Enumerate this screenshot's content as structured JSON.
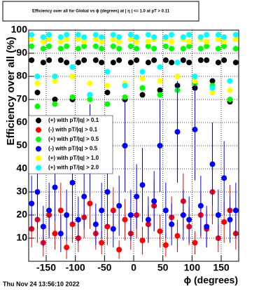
{
  "chart_data": {
    "type": "scatter",
    "title": "Efficiency over all for Global vs ϕ (degrees) at | η | <= 1.0 at pT > 0.11",
    "x_label": "ϕ (degrees)",
    "y_label": "Efficiency over all (%)",
    "timestamp": "Thu Nov 24 13:56:10 2022",
    "xlim": [
      -180,
      180
    ],
    "ylim": [
      0,
      100
    ],
    "xticks": [
      -150,
      -100,
      -50,
      0,
      50,
      100,
      150
    ],
    "yticks": [
      10,
      20,
      30,
      40,
      50,
      60,
      70,
      80,
      90,
      100
    ],
    "grid": true,
    "legend": "left",
    "x": [
      -175,
      -165,
      -155,
      -145,
      -135,
      -125,
      -115,
      -105,
      -95,
      -85,
      -75,
      -65,
      -55,
      -45,
      -35,
      -25,
      -15,
      -5,
      5,
      15,
      25,
      35,
      45,
      55,
      65,
      75,
      85,
      95,
      105,
      115,
      125,
      135,
      145,
      155,
      165,
      175
    ],
    "series": [
      {
        "name": "(+) with pT/|q| > 0.1",
        "color": "#000000",
        "values": [
          87,
          73,
          86,
          87,
          70,
          87,
          86,
          70,
          86,
          87,
          72,
          87,
          86,
          73,
          86,
          87,
          70,
          86,
          87,
          72,
          86,
          87,
          74,
          87,
          86,
          76,
          87,
          86,
          75,
          87,
          87,
          78,
          86,
          87,
          69,
          86
        ]
      },
      {
        "name": "(-) with pT/|q| > 0.1",
        "color": "#ff0000",
        "values": [
          14,
          18,
          8,
          20,
          12,
          22,
          6,
          16,
          10,
          19,
          25,
          12,
          8,
          15,
          22,
          5,
          18,
          12,
          20,
          9,
          16,
          24,
          13,
          7,
          19,
          11,
          26,
          15,
          8,
          20,
          14,
          30,
          10,
          17,
          22,
          12
        ],
        "errors": [
          8,
          10,
          6,
          9,
          7,
          12,
          5,
          8,
          6,
          9,
          11,
          7,
          5,
          8,
          10,
          4,
          9,
          7,
          10,
          6,
          8,
          11,
          7,
          5,
          9,
          7,
          12,
          8,
          5,
          10,
          8,
          14,
          6,
          9,
          11,
          7
        ]
      },
      {
        "name": "(+) with pT/|q| > 0.5",
        "color": "#00ff00",
        "values": [
          93,
          67,
          92,
          93,
          68,
          92,
          93,
          71,
          92,
          93,
          70,
          93,
          92,
          68,
          93,
          92,
          71,
          93,
          92,
          75,
          93,
          92,
          72,
          93,
          92,
          74,
          92,
          93,
          77,
          92,
          93,
          76,
          92,
          93,
          70,
          92
        ]
      },
      {
        "name": "(-) with pT/|q| > 0.5",
        "color": "#0000ff",
        "values": [
          25,
          30,
          15,
          22,
          32,
          12,
          20,
          34,
          18,
          28,
          48,
          16,
          22,
          30,
          14,
          24,
          50,
          20,
          28,
          33,
          18,
          26,
          50,
          22,
          16,
          56,
          20,
          18,
          57,
          24,
          15,
          42,
          20,
          36,
          18,
          22
        ],
        "errors": [
          12,
          16,
          9,
          12,
          15,
          8,
          11,
          18,
          10,
          14,
          20,
          9,
          12,
          15,
          8,
          13,
          20,
          11,
          14,
          16,
          10,
          13,
          20,
          12,
          9,
          22,
          11,
          10,
          22,
          13,
          9,
          18,
          11,
          16,
          10,
          12
        ]
      },
      {
        "name": "(+) with pT/|q| > 1.0",
        "color": "#ffff00",
        "values": [
          96,
          77,
          95,
          96,
          78,
          95,
          96,
          80,
          96,
          95,
          77,
          96,
          95,
          76,
          96,
          95,
          77,
          96,
          95,
          79,
          95,
          96,
          78,
          96,
          95,
          80,
          96,
          95,
          78,
          96,
          95,
          73,
          96,
          95,
          74,
          96
        ]
      },
      {
        "name": "(+) with pT/|q| > 2.0",
        "color": "#00ffff",
        "values": [
          98,
          80,
          97,
          98,
          80,
          97,
          98,
          84,
          98,
          97,
          72,
          98,
          97,
          82,
          98,
          97,
          76,
          98,
          97,
          82,
          98,
          97,
          84,
          97,
          98,
          86,
          97,
          98,
          80,
          97,
          98,
          75,
          98,
          97,
          78,
          98
        ]
      }
    ]
  }
}
